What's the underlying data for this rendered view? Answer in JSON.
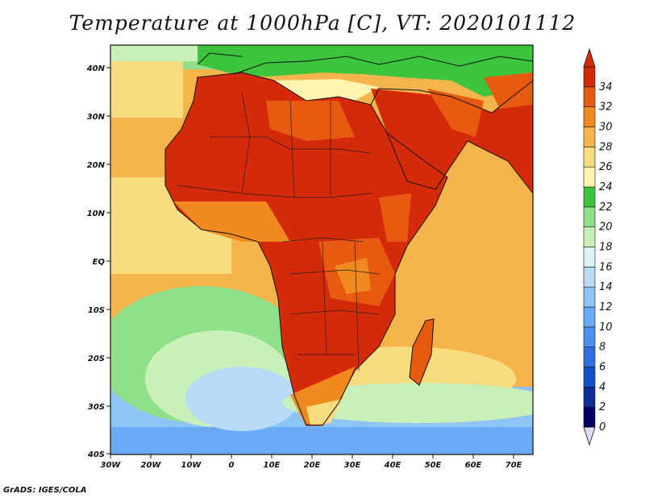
{
  "title": "Temperature at 1000hPa [C], VT: 2020101112",
  "credit": "GrADS: IGES/COLA",
  "map": {
    "lon_labels": [
      "30W",
      "20W",
      "10W",
      "0",
      "10E",
      "20E",
      "30E",
      "40E",
      "50E",
      "60E",
      "70E"
    ],
    "lat_labels": [
      "40N",
      "30N",
      "20N",
      "10N",
      "EQ",
      "10S",
      "20S",
      "30S",
      "40S"
    ]
  },
  "colorbar": {
    "labels": [
      "0",
      "2",
      "4",
      "6",
      "8",
      "10",
      "12",
      "14",
      "16",
      "18",
      "20",
      "22",
      "24",
      "26",
      "28",
      "30",
      "32",
      "34"
    ],
    "colors": [
      "#000066",
      "#0b2f96",
      "#1350c8",
      "#2f6fe0",
      "#4a8fee",
      "#6aaaf5",
      "#8fc4f7",
      "#b8dcf8",
      "#dcf2f6",
      "#c8f0b8",
      "#90e08a",
      "#3cc43c",
      "#fff5b0",
      "#f8dd80",
      "#f6b44c",
      "#f08a1e",
      "#e85a10",
      "#d42a0a"
    ]
  }
}
